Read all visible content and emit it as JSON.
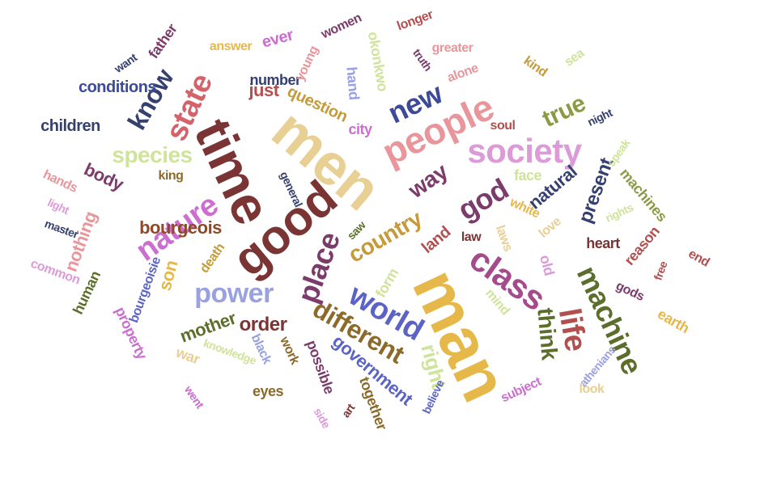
{
  "words": [
    {
      "text": "man",
      "color": "#e6b84a"
    },
    {
      "text": "men",
      "color": "#e8cf93"
    },
    {
      "text": "time",
      "color": "#7b3434"
    },
    {
      "text": "good",
      "color": "#7b3434"
    },
    {
      "text": "people",
      "color": "#e8969b"
    },
    {
      "text": "society",
      "color": "#dd9ad8"
    },
    {
      "text": "class",
      "color": "#a54b8b"
    },
    {
      "text": "life",
      "color": "#b24f4f"
    },
    {
      "text": "machine",
      "color": "#5c6e2c"
    },
    {
      "text": "state",
      "color": "#d4626a"
    },
    {
      "text": "nature",
      "color": "#cc6ecf"
    },
    {
      "text": "world",
      "color": "#5b64c4"
    },
    {
      "text": "place",
      "color": "#7b3b6b"
    },
    {
      "text": "new",
      "color": "#3d4a98"
    },
    {
      "text": "god",
      "color": "#7b3b6b"
    },
    {
      "text": "power",
      "color": "#9aa1e0"
    },
    {
      "text": "different",
      "color": "#8c6a2a"
    },
    {
      "text": "know",
      "color": "#36406f"
    },
    {
      "text": "country",
      "color": "#c49a3a"
    },
    {
      "text": "species",
      "color": "#cfe39b"
    },
    {
      "text": "true",
      "color": "#8b9a44"
    },
    {
      "text": "way",
      "color": "#7b3b6b"
    },
    {
      "text": "think",
      "color": "#5c6e2c"
    },
    {
      "text": "right",
      "color": "#cfe39b"
    },
    {
      "text": "present",
      "color": "#36406f"
    },
    {
      "text": "government",
      "color": "#5b64c4"
    },
    {
      "text": "bourgeois",
      "color": "#8c4a2a"
    },
    {
      "text": "order",
      "color": "#7b3434"
    },
    {
      "text": "body",
      "color": "#7b3b6b"
    },
    {
      "text": "natural",
      "color": "#36406f"
    },
    {
      "text": "land",
      "color": "#b24f4f"
    },
    {
      "text": "son",
      "color": "#e6b84a"
    },
    {
      "text": "nothing",
      "color": "#e8969b"
    },
    {
      "text": "mother",
      "color": "#5c6e2c"
    },
    {
      "text": "just",
      "color": "#b24f4f"
    },
    {
      "text": "ever",
      "color": "#cc6ecf"
    },
    {
      "text": "question",
      "color": "#c49a3a"
    },
    {
      "text": "hand",
      "color": "#9aa1e0"
    },
    {
      "text": "okonkwo",
      "color": "#cfe39b"
    },
    {
      "text": "children",
      "color": "#36406f"
    },
    {
      "text": "conditions",
      "color": "#3d4a98"
    },
    {
      "text": "father",
      "color": "#7b3b6b"
    },
    {
      "text": "possible",
      "color": "#7b3b6b"
    },
    {
      "text": "together",
      "color": "#8c6a2a"
    },
    {
      "text": "reason",
      "color": "#b24f4f"
    },
    {
      "text": "machines",
      "color": "#8b9a44"
    },
    {
      "text": "form",
      "color": "#cfe39b"
    },
    {
      "text": "war",
      "color": "#e8cf93"
    },
    {
      "text": "property",
      "color": "#cc6ecf"
    },
    {
      "text": "human",
      "color": "#5c6e2c"
    },
    {
      "text": "bourgeoisie",
      "color": "#5b64c4"
    },
    {
      "text": "number",
      "color": "#36406f"
    },
    {
      "text": "city",
      "color": "#cc6ecf"
    },
    {
      "text": "old",
      "color": "#dd9ad8"
    },
    {
      "text": "gods",
      "color": "#7b3b6b"
    },
    {
      "text": "heart",
      "color": "#7b3434"
    },
    {
      "text": "death",
      "color": "#c49a3a"
    },
    {
      "text": "eyes",
      "color": "#8c6a2a"
    },
    {
      "text": "black",
      "color": "#9aa1e0"
    },
    {
      "text": "work",
      "color": "#8c6a2a"
    },
    {
      "text": "earth",
      "color": "#e6b84a"
    },
    {
      "text": "hands",
      "color": "#e8969b"
    },
    {
      "text": "common",
      "color": "#dd9ad8"
    },
    {
      "text": "white",
      "color": "#e6b84a"
    },
    {
      "text": "love",
      "color": "#e8cf93"
    },
    {
      "text": "laws",
      "color": "#e8cf93"
    },
    {
      "text": "mind",
      "color": "#cfe39b"
    },
    {
      "text": "face",
      "color": "#cfe39b"
    },
    {
      "text": "soul",
      "color": "#b24f4f"
    },
    {
      "text": "king",
      "color": "#8c6a2a"
    },
    {
      "text": "law",
      "color": "#7b3434"
    },
    {
      "text": "kind",
      "color": "#c49a3a"
    },
    {
      "text": "greater",
      "color": "#e8969b"
    },
    {
      "text": "longer",
      "color": "#b24f4f"
    },
    {
      "text": "women",
      "color": "#7b3b6b"
    },
    {
      "text": "answer",
      "color": "#e6b84a"
    },
    {
      "text": "young",
      "color": "#e8969b"
    },
    {
      "text": "truth",
      "color": "#7b3b6b"
    },
    {
      "text": "alone",
      "color": "#e8969b"
    },
    {
      "text": "sea",
      "color": "#cfe39b"
    },
    {
      "text": "night",
      "color": "#36406f"
    },
    {
      "text": "speak",
      "color": "#cfe39b"
    },
    {
      "text": "rights",
      "color": "#cfe39b"
    },
    {
      "text": "free",
      "color": "#b24f4f"
    },
    {
      "text": "end",
      "color": "#b24f4f"
    },
    {
      "text": "athenians",
      "color": "#9aa1e0"
    },
    {
      "text": "look",
      "color": "#e8cf93"
    },
    {
      "text": "subject",
      "color": "#cc6ecf"
    },
    {
      "text": "believe",
      "color": "#5b64c4"
    },
    {
      "text": "art",
      "color": "#7b3434"
    },
    {
      "text": "side",
      "color": "#dd9ad8"
    },
    {
      "text": "knowledge",
      "color": "#cfe39b"
    },
    {
      "text": "went",
      "color": "#cc6ecf"
    },
    {
      "text": "general",
      "color": "#36406f"
    },
    {
      "text": "saw",
      "color": "#5c6e2c"
    },
    {
      "text": "light",
      "color": "#dd9ad8"
    },
    {
      "text": "master",
      "color": "#36406f"
    },
    {
      "text": "want",
      "color": "#36406f"
    },
    {
      "text": "rest",
      "color": "#dd9ad8"
    }
  ]
}
